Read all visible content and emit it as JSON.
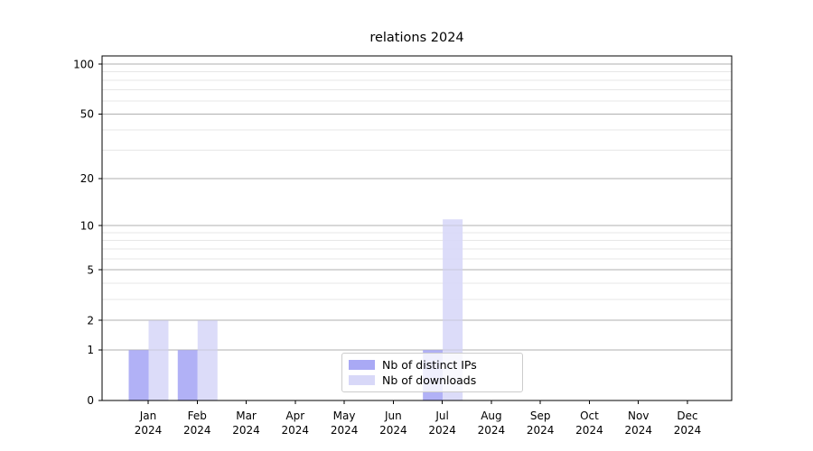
{
  "chart_data": {
    "type": "bar",
    "title": "relations 2024",
    "categories": [
      "Jan 2024",
      "Feb 2024",
      "Mar 2024",
      "Apr 2024",
      "May 2024",
      "Jun 2024",
      "Jul 2024",
      "Aug 2024",
      "Sep 2024",
      "Oct 2024",
      "Nov 2024",
      "Dec 2024"
    ],
    "x_tick_months": [
      "Jan",
      "Feb",
      "Mar",
      "Apr",
      "May",
      "Jun",
      "Jul",
      "Aug",
      "Sep",
      "Oct",
      "Nov",
      "Dec"
    ],
    "x_tick_year": "2024",
    "series": [
      {
        "name": "Nb of distinct IPs",
        "color": "#a9a9f5",
        "values": [
          1,
          1,
          0,
          0,
          0,
          0,
          1,
          0,
          0,
          0,
          0,
          0
        ]
      },
      {
        "name": "Nb of downloads",
        "color": "#d8d8f8",
        "values": [
          2,
          2,
          0,
          0,
          0,
          0,
          11,
          0,
          0,
          0,
          0,
          0
        ]
      }
    ],
    "y_axis": {
      "scale": "log1p",
      "major_ticks": [
        0,
        1,
        2,
        5,
        10,
        20,
        50,
        100
      ],
      "minor_ticks": [
        3,
        4,
        6,
        7,
        8,
        9,
        30,
        40,
        60,
        70,
        80,
        90
      ],
      "max": 112
    },
    "grid": {
      "enabled": true,
      "major_color": "#b0b0b0",
      "minor_color": "#e7e7e7"
    },
    "legend": {
      "position": "inside-bottom-center"
    },
    "colors": {
      "background": "#ffffff",
      "axis": "#000000"
    }
  }
}
